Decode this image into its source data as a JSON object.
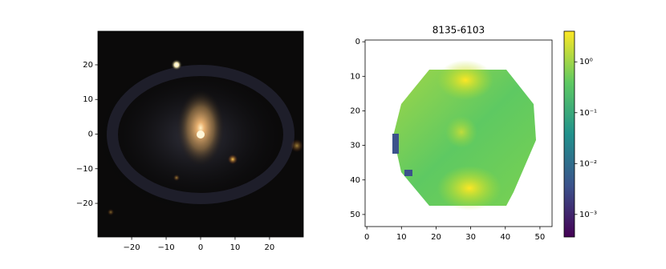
{
  "chart_data": [
    {
      "type": "image",
      "xlim": [
        -29.8,
        29.8
      ],
      "ylim": [
        -29.7,
        29.7
      ],
      "xticks": [
        {
          "value": -20,
          "label": "−20"
        },
        {
          "value": -10,
          "label": "−10"
        },
        0,
        10,
        20
      ],
      "yticks": [
        {
          "value": -20,
          "label": "−20"
        },
        {
          "value": -10,
          "label": "−10"
        },
        0,
        10,
        20
      ]
    },
    {
      "type": "heatmap",
      "title": "8135-6103",
      "xlim": [
        -0.5,
        53.5
      ],
      "ylim": [
        53.5,
        -0.5
      ],
      "xticks": [
        0,
        10,
        20,
        30,
        40,
        50
      ],
      "yticks": [
        0,
        10,
        20,
        30,
        40,
        50
      ],
      "colorbar": {
        "scale": "log",
        "lim": [
          0.00036,
          4
        ],
        "ticks": [
          {
            "value": 0.001,
            "label": "10⁻³"
          },
          {
            "value": 0.01,
            "label": "10⁻²"
          },
          {
            "value": 0.1,
            "label": "10⁻¹"
          },
          {
            "value": 1,
            "label": "10⁰"
          }
        ]
      }
    }
  ]
}
